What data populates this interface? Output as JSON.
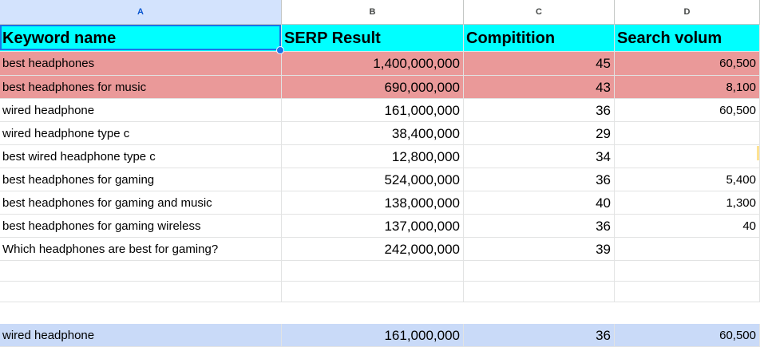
{
  "columns": [
    "A",
    "B",
    "C",
    "D"
  ],
  "selected_column": "A",
  "headers": [
    "Keyword name",
    "SERP Result",
    "Compitition",
    "Search volum"
  ],
  "rows": [
    {
      "keyword": "best headphones",
      "serp": "1,400,000,000",
      "competition": "45",
      "volume": "60,500",
      "highlight": "pink"
    },
    {
      "keyword": "best headphones for music",
      "serp": "690,000,000",
      "competition": "43",
      "volume": "8,100",
      "highlight": "pink"
    },
    {
      "keyword": "wired headphone",
      "serp": "161,000,000",
      "competition": "36",
      "volume": "60,500",
      "highlight": ""
    },
    {
      "keyword": "wired headphone type c",
      "serp": "38,400,000",
      "competition": "29",
      "volume": "",
      "highlight": ""
    },
    {
      "keyword": "best wired headphone type c",
      "serp": "12,800,000",
      "competition": "34",
      "volume": "",
      "highlight": ""
    },
    {
      "keyword": "best headphones for gaming",
      "serp": "524,000,000",
      "competition": "36",
      "volume": "5,400",
      "highlight": ""
    },
    {
      "keyword": "best headphones for gaming and music",
      "serp": "138,000,000",
      "competition": "40",
      "volume": "1,300",
      "highlight": ""
    },
    {
      "keyword": "best headphones for gaming wireless",
      "serp": "137,000,000",
      "competition": "36",
      "volume": "40",
      "highlight": ""
    },
    {
      "keyword": "Which headphones are best for gaming?",
      "serp": "242,000,000",
      "competition": "39",
      "volume": "",
      "highlight": ""
    },
    {
      "keyword": "",
      "serp": "",
      "competition": "",
      "volume": "",
      "highlight": ""
    },
    {
      "keyword": "",
      "serp": "",
      "competition": "",
      "volume": "",
      "highlight": ""
    },
    {
      "keyword": "wired headphone",
      "serp": "161,000,000",
      "competition": "36",
      "volume": "60,500",
      "highlight": "blue"
    }
  ],
  "colors": {
    "header_fill": "#00ffff",
    "highlight_pink": "#ea9999",
    "highlight_blue": "#c9daf8",
    "selection": "#1a73e8"
  }
}
